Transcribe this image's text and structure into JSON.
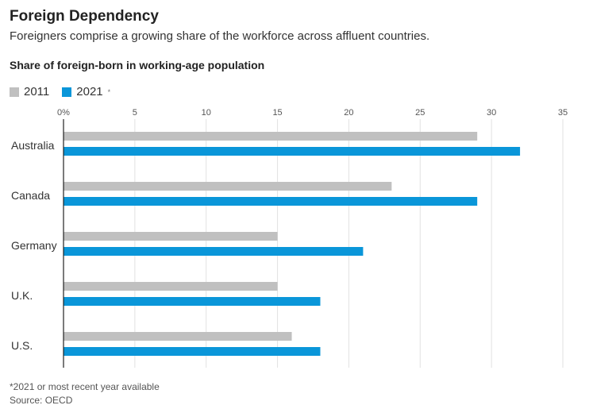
{
  "title": "Foreign Dependency",
  "subtitle": "Foreigners comprise a growing share of the workforce across affluent countries.",
  "footnote": "*2021 or most recent year available",
  "source": "Source: OECD",
  "chart_data": {
    "type": "bar",
    "orientation": "horizontal",
    "title": "Share of foreign-born in working-age population",
    "categories": [
      "Australia",
      "Canada",
      "Germany",
      "U.K.",
      "U.S."
    ],
    "series": [
      {
        "name": "2011",
        "color": "#c0c0c0",
        "values": [
          29,
          23,
          15,
          15,
          16
        ]
      },
      {
        "name": "2021",
        "marker": "*",
        "color": "#0a96d9",
        "values": [
          32,
          29,
          21,
          18,
          18
        ]
      }
    ],
    "xlim": [
      0,
      35
    ],
    "xticks": [
      0,
      5,
      10,
      15,
      20,
      25,
      30,
      35
    ],
    "xtick_labels": [
      "0%",
      "5",
      "10",
      "15",
      "20",
      "25",
      "30",
      "35"
    ],
    "grid": true,
    "legend": "top-left"
  }
}
